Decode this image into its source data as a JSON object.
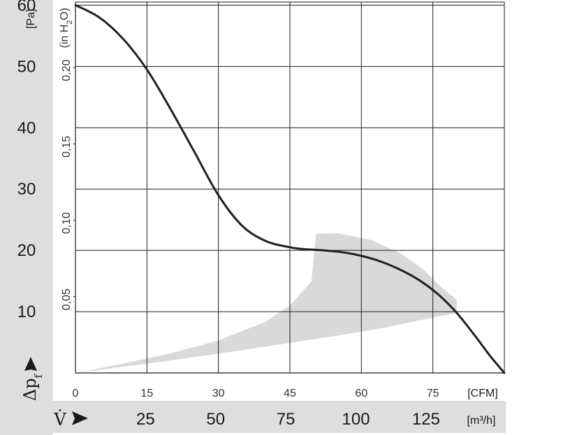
{
  "chart_data": {
    "type": "line",
    "title": "",
    "y_axis_primary": {
      "symbol": "Δp",
      "subscript": "f",
      "unit": "[Pa]",
      "ticks": [
        "10",
        "20",
        "30",
        "40",
        "50",
        "60"
      ],
      "range": [
        0,
        60.5
      ]
    },
    "y_axis_secondary": {
      "unit_prefix": "(in H",
      "unit_sub": "2",
      "unit_suffix": "O)",
      "ticks": [
        "0,05",
        "0,10",
        "0,15",
        "0,20"
      ]
    },
    "x_axis_primary": {
      "unit": "[CFM]",
      "ticks": [
        "0",
        "15",
        "30",
        "45",
        "60",
        "75"
      ],
      "range": [
        0,
        90
      ]
    },
    "x_axis_secondary": {
      "symbol": "V̇",
      "unit": "[m³/h]",
      "ticks": [
        "25",
        "50",
        "75",
        "100",
        "125"
      ]
    },
    "series": [
      {
        "x": [
          0,
          5,
          10,
          15,
          20,
          25,
          30,
          35,
          40,
          45,
          48,
          52,
          56,
          60,
          64,
          68,
          72,
          76,
          80,
          84,
          87,
          90
        ],
        "y": [
          60,
          58,
          54.5,
          49.5,
          43,
          36,
          29,
          24,
          21.5,
          20.5,
          20.2,
          20.0,
          19.7,
          19.1,
          18.2,
          16.9,
          15.2,
          12.9,
          9.8,
          5.9,
          2.8,
          0
        ]
      }
    ],
    "operating_region": {
      "upper": {
        "x": [
          0,
          10,
          20,
          30,
          40,
          45,
          49.5
        ],
        "y": [
          0,
          1.5,
          3.2,
          5.3,
          8.4,
          11.0,
          14.9
        ]
      },
      "top_edge": {
        "x": [
          49.5,
          50.5,
          55,
          62,
          68,
          73,
          77,
          80
        ],
        "y": [
          14.9,
          22.7,
          22.8,
          21.7,
          19.6,
          16.9,
          13.8,
          12.0
        ]
      },
      "lower": {
        "x": [
          80,
          73,
          65,
          55,
          45,
          35,
          25,
          15,
          5,
          0
        ],
        "y": [
          9.8,
          8.7,
          7.4,
          6.1,
          4.9,
          3.7,
          2.6,
          1.5,
          0.5,
          0
        ]
      }
    },
    "grid": true,
    "colors": {
      "curve": "#231f20",
      "grid": "#1a1a1a",
      "region": "#d9d9d9",
      "axis_band": "#dedede"
    }
  }
}
